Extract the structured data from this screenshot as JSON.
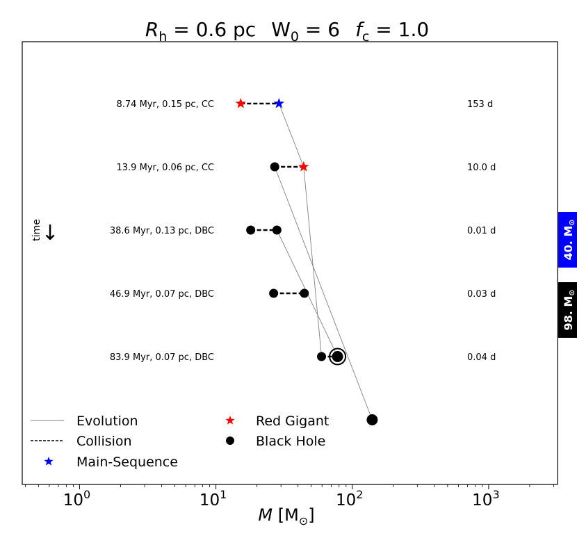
{
  "chart_data": {
    "type": "scatter",
    "title": {
      "rh_symbol": "R",
      "rh_sub": "h",
      "rh_value": " = 0.6 pc",
      "w0_symbol": "W",
      "w0_sub": "0",
      "w0_value": " = 6",
      "fc_symbol": "f",
      "fc_sub": "c",
      "fc_value": " = 1.0"
    },
    "xlabel": {
      "symbol": "M",
      "unit_open": " [M",
      "unit_sun": "⊙",
      "unit_close": "]"
    },
    "xscale": "log",
    "xlim": [
      0.38,
      3200
    ],
    "rows": 6,
    "xticks": [
      {
        "value": 1,
        "base": "10",
        "exp": "0"
      },
      {
        "value": 10,
        "base": "10",
        "exp": "1"
      },
      {
        "value": 100,
        "base": "10",
        "exp": "2"
      },
      {
        "value": 1000,
        "base": "10",
        "exp": "3"
      }
    ],
    "minor_ticks": [
      0.4,
      0.5,
      0.6,
      0.7,
      0.8,
      0.9,
      2,
      3,
      4,
      5,
      6,
      7,
      8,
      9,
      20,
      30,
      40,
      50,
      60,
      70,
      80,
      90,
      200,
      300,
      400,
      500,
      600,
      700,
      800,
      900,
      2000,
      3000
    ],
    "time_label": "time",
    "time_arrow": "↓",
    "events": [
      {
        "row": 0,
        "label": "8.74 Myr, 0.15 pc, CC",
        "period": "153 d",
        "left": {
          "mass": 15.2,
          "type": "red-giant"
        },
        "right": {
          "mass": 29.0,
          "type": "main-sequence"
        }
      },
      {
        "row": 1,
        "label": "13.9 Myr, 0.06 pc, CC",
        "period": "10.0 d",
        "left": {
          "mass": 27.0,
          "type": "black-hole"
        },
        "right": {
          "mass": 44.0,
          "type": "red-giant"
        }
      },
      {
        "row": 2,
        "label": "38.6 Myr, 0.13 pc, DBC",
        "period": "0.01 d",
        "left": {
          "mass": 18.0,
          "type": "black-hole"
        },
        "right": {
          "mass": 28.0,
          "type": "black-hole"
        }
      },
      {
        "row": 3,
        "label": "46.9 Myr, 0.07 pc, DBC",
        "period": "0.03 d",
        "left": {
          "mass": 26.5,
          "type": "black-hole"
        },
        "right": {
          "mass": 44.5,
          "type": "black-hole"
        }
      },
      {
        "row": 4,
        "label": "83.9 Myr, 0.07 pc, DBC",
        "period": "0.04 d",
        "left": {
          "mass": 59.5,
          "type": "black-hole"
        },
        "right": {
          "mass": 78.0,
          "type": "black-hole",
          "ringed": true
        }
      }
    ],
    "final": {
      "row": 5,
      "mass": 140,
      "type": "black-hole"
    },
    "evolution_tracks": [
      [
        [
          29.0,
          0
        ],
        [
          44.0,
          1
        ],
        [
          59.5,
          4
        ]
      ],
      [
        [
          28.0,
          2
        ],
        [
          78.0,
          4
        ]
      ],
      [
        [
          27.0,
          1
        ],
        [
          140,
          5
        ]
      ]
    ],
    "legend": [
      {
        "marker": "line",
        "label": "Evolution"
      },
      {
        "marker": "dashed",
        "label": "Collision"
      },
      {
        "marker": "star",
        "color": "#0000ff",
        "label": "Main-Sequence"
      },
      {
        "marker": "star",
        "color": "#ff0000",
        "label": "Red Gigant"
      },
      {
        "marker": "dot",
        "color": "#000000",
        "label": "Black Hole"
      }
    ],
    "side_tags": [
      {
        "value": "40.",
        "unit": " M",
        "sun": "⊙",
        "color": "#0000ff"
      },
      {
        "value": "98.",
        "unit": " M",
        "sun": "⊙",
        "color": "#000000"
      }
    ],
    "colors": {
      "main_sequence": "#0000ff",
      "red_giant": "#ff0000",
      "black_hole": "#000000",
      "evolution": "#808080"
    }
  }
}
